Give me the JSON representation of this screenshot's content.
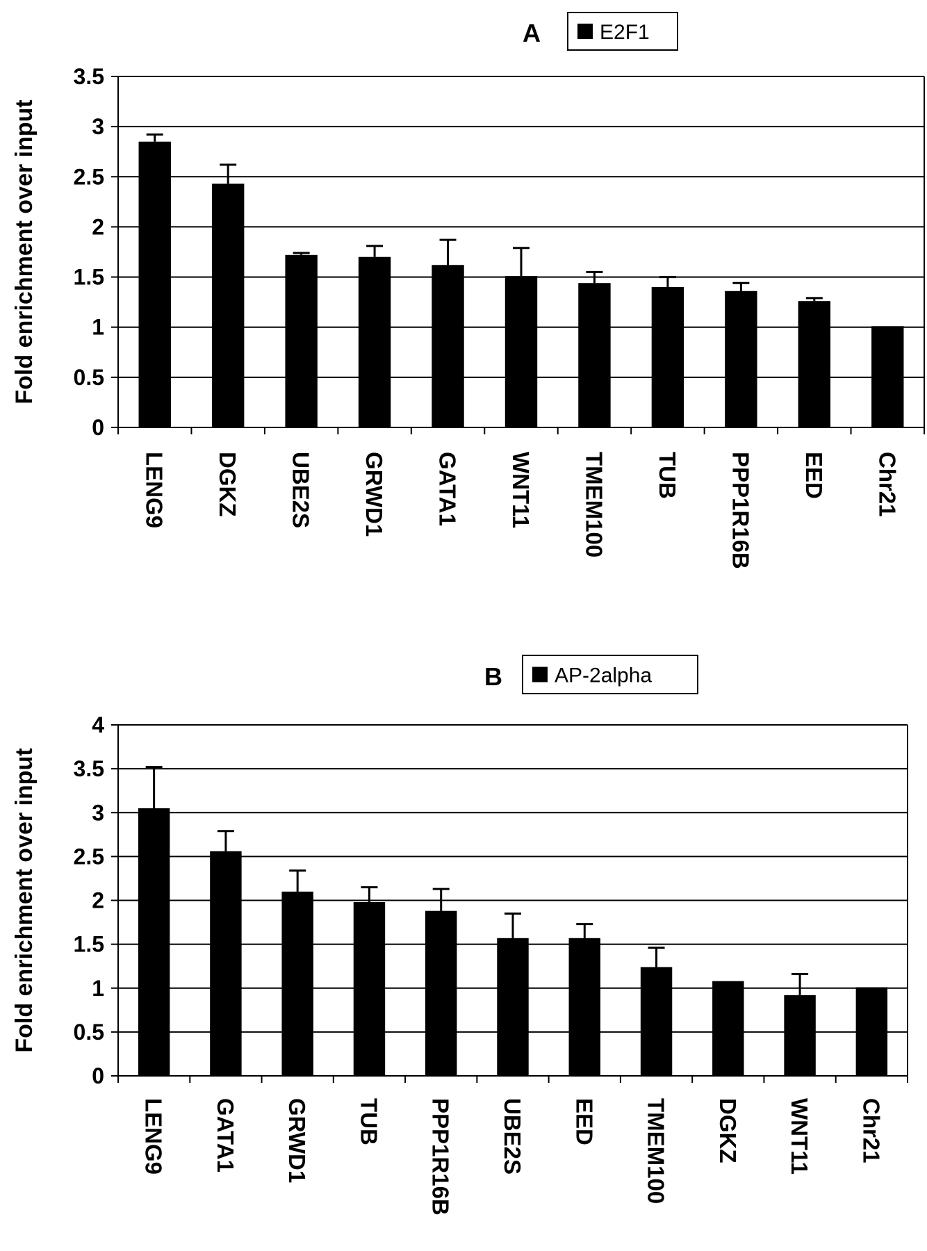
{
  "colors": {
    "bar": "#000000",
    "grid": "#000000",
    "background": "#ffffff"
  },
  "chart_data": [
    {
      "type": "bar",
      "panel_label": "A",
      "legend": [
        "E2F1"
      ],
      "legend_placement": "top",
      "ylabel": "Fold enrichment over input",
      "xlabel": "",
      "ylim": [
        0,
        3.5
      ],
      "y_ticks": [
        0,
        0.5,
        1,
        1.5,
        2,
        2.5,
        3,
        3.5
      ],
      "y_tick_labels": [
        "0",
        "0.5",
        "1",
        "1.5",
        "2",
        "2.5",
        "3",
        "3.5"
      ],
      "grid": true,
      "categories": [
        "LENG9",
        "DGKZ",
        "UBE2S",
        "GRWD1",
        "GATA1",
        "WNT11",
        "TMEM100",
        "TUB",
        "PPP1R16B",
        "EED",
        "Chr21"
      ],
      "series": [
        {
          "name": "E2F1",
          "values": [
            2.85,
            2.43,
            1.72,
            1.7,
            1.62,
            1.51,
            1.44,
            1.4,
            1.36,
            1.26,
            1.01
          ],
          "errors": [
            0.07,
            0.19,
            0.02,
            0.11,
            0.25,
            0.28,
            0.11,
            0.1,
            0.08,
            0.03,
            0.0
          ]
        }
      ]
    },
    {
      "type": "bar",
      "panel_label": "B",
      "legend": [
        "AP-2alpha"
      ],
      "legend_placement": "top",
      "ylabel": "Fold enrichment over input",
      "xlabel": "",
      "ylim": [
        0,
        4
      ],
      "y_ticks": [
        0,
        0.5,
        1,
        1.5,
        2,
        2.5,
        3,
        3.5,
        4
      ],
      "y_tick_labels": [
        "0",
        "0.5",
        "1",
        "1.5",
        "2",
        "2.5",
        "3",
        "3.5",
        "4"
      ],
      "grid": true,
      "categories": [
        "LENG9",
        "GATA1",
        "GRWD1",
        "TUB",
        "PPP1R16B",
        "UBE2S",
        "EED",
        "TMEM100",
        "DGKZ",
        "WNT11",
        "Chr21"
      ],
      "series": [
        {
          "name": "AP-2alpha",
          "values": [
            3.05,
            2.56,
            2.1,
            1.98,
            1.88,
            1.57,
            1.57,
            1.24,
            1.08,
            0.92,
            1.01
          ],
          "errors": [
            0.47,
            0.23,
            0.24,
            0.17,
            0.25,
            0.28,
            0.16,
            0.22,
            0.0,
            0.24,
            0.0
          ]
        }
      ]
    }
  ]
}
